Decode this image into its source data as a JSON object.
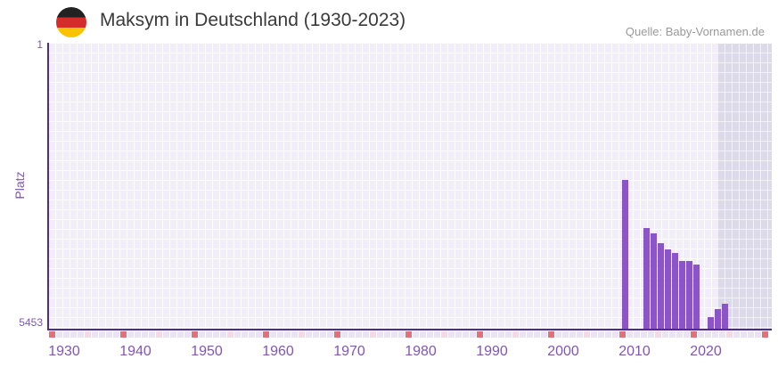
{
  "header": {
    "title": "Maksym in Deutschland (1930-2023)",
    "source": "Quelle: Baby-Vornamen.de",
    "flag_icon": "germany-flag"
  },
  "y_axis": {
    "title": "Platz",
    "top_tick": "1",
    "bottom_tick": "5453"
  },
  "x_axis": {
    "ticks": [
      "1930",
      "1940",
      "1950",
      "1960",
      "1970",
      "1980",
      "1990",
      "2000",
      "2010",
      "2020"
    ]
  },
  "colors": {
    "bar": "#8b55c7",
    "axis_line": "#4e2d88",
    "axis_label": "#7e57b2",
    "grid_cell": "#f1edf9",
    "grid_cell_future": "#dcd9e8",
    "strip_default": "#e9e3f3",
    "strip_red": "#e0707a",
    "strip_pink": "#f5d9e4",
    "title_text": "#3a3a3a",
    "source_text": "#9a9a9a",
    "flag_black": "#222222",
    "flag_red": "#d42b2b",
    "flag_gold": "#f8c300"
  },
  "chart_data": {
    "type": "bar",
    "title": "Maksym in Deutschland (1930-2023)",
    "ylabel": "Platz",
    "y_range": [
      1,
      5453
    ],
    "y_inverted": true,
    "x_tick_years": [
      1930,
      1940,
      1950,
      1960,
      1970,
      1980,
      1990,
      2000,
      2010,
      2020
    ],
    "grid": true,
    "legend": "none",
    "series": [
      {
        "name": "Platz",
        "points": [
          {
            "year": 2009,
            "rank": 2608
          },
          {
            "year": 2012,
            "rank": 3527
          },
          {
            "year": 2013,
            "rank": 3630
          },
          {
            "year": 2014,
            "rank": 3817
          },
          {
            "year": 2015,
            "rank": 3936
          },
          {
            "year": 2016,
            "rank": 4004
          },
          {
            "year": 2017,
            "rank": 4158
          },
          {
            "year": 2018,
            "rank": 4158
          },
          {
            "year": 2019,
            "rank": 4226
          },
          {
            "year": 2021,
            "rank": 5231
          },
          {
            "year": 2022,
            "rank": 5077
          },
          {
            "year": 2023,
            "rank": 4975
          }
        ]
      }
    ],
    "missing_years_note": ""
  }
}
